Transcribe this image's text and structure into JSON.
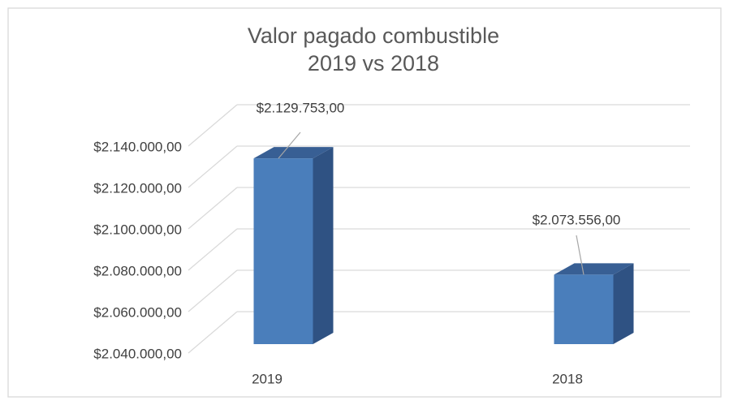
{
  "chart_data": {
    "type": "bar3d",
    "title": [
      "Valor pagado combustible",
      "2019 vs 2018"
    ],
    "categories": [
      "2019",
      "2018"
    ],
    "values": [
      2129753,
      2073556
    ],
    "value_labels": [
      "$2.129.753,00",
      "$2.073.556,00"
    ],
    "color": "#4a7ebb",
    "ylim": [
      2040000,
      2140000
    ],
    "yticks": [
      {
        "value": 2040000,
        "label": "$2.040.000,00"
      },
      {
        "value": 2060000,
        "label": "$2.060.000,00"
      },
      {
        "value": 2080000,
        "label": "$2.080.000,00"
      },
      {
        "value": 2100000,
        "label": "$2.100.000,00"
      },
      {
        "value": 2120000,
        "label": "$2.120.000,00"
      },
      {
        "value": 2140000,
        "label": "$2.140.000,00"
      }
    ],
    "grid": true
  }
}
